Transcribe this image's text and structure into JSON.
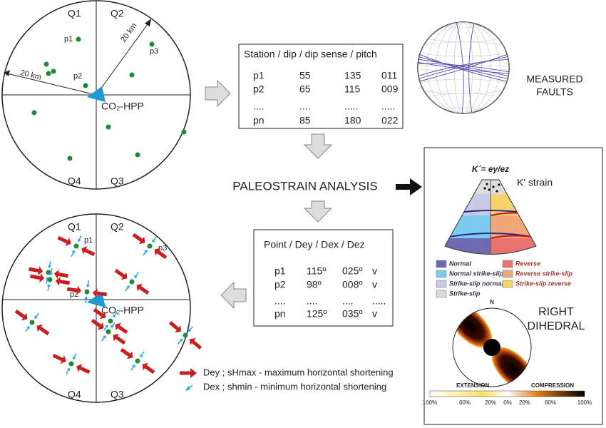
{
  "top_map": {
    "quadrants": [
      "Q1",
      "Q2",
      "Q4",
      "Q3"
    ],
    "points": [
      "p1",
      "p2",
      "p3"
    ],
    "distance_labels": [
      "20 km",
      "20 km"
    ],
    "site_label": "CO₂-HPP"
  },
  "fault_table": {
    "header": "Station / dip / dip sense / pitch",
    "rows": [
      [
        "p1",
        "55",
        "135",
        "011"
      ],
      [
        "p2",
        "65",
        "115",
        "009"
      ],
      [
        "....",
        "....",
        ".....",
        "....."
      ],
      [
        "pn",
        "85",
        "180",
        "022"
      ]
    ]
  },
  "stereonet_label": [
    "MEASURED",
    "FAULTS"
  ],
  "process_label": "PALEOSTRAIN ANALYSIS",
  "strain_table": {
    "header": "Point / Dey / Dex / Dez",
    "rows": [
      [
        "p1",
        "115º",
        "025º",
        "v"
      ],
      [
        "p2",
        "98º",
        "008º",
        "v"
      ],
      [
        "....",
        "....",
        "....",
        "....."
      ],
      [
        "pn",
        "125º",
        "035º",
        "v"
      ]
    ]
  },
  "bottom_map": {
    "quadrants": [
      "Q1",
      "Q2",
      "Q4",
      "Q3"
    ],
    "points": [
      "p1",
      "p2",
      "p3"
    ],
    "site_label": "CO₂-HPP"
  },
  "legend": [
    "Dey ; sHmax - maximum horizontal shortening",
    "Dex ; shmin - minimum horizontal shortening"
  ],
  "k_strain": {
    "formula": "K´= ey/ez",
    "title": "K' strain",
    "legend": [
      "Normal",
      "Normal strike-slip",
      "Strike-slip normal",
      "Strike-slip",
      "Reverse",
      "Reverse strike-slip",
      "Strike-slip reverse"
    ]
  },
  "right_dihedral": {
    "north": "N",
    "title": [
      "RIGHT",
      "DIHEDRAL"
    ],
    "extension": "EXTENSION",
    "compression": "COMPRESSION",
    "scale": [
      "100%",
      "60%",
      "20%",
      "0%",
      "20%",
      "60%",
      "100%"
    ]
  }
}
